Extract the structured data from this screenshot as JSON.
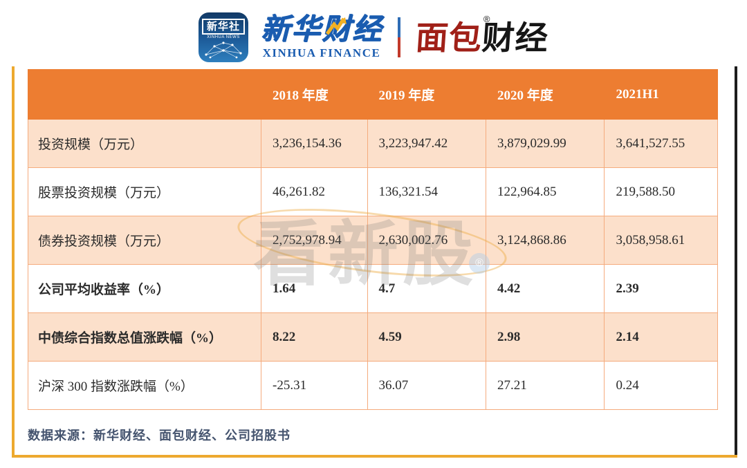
{
  "header": {
    "xinhua_news_icon": {
      "title": "新华社",
      "subtitle": "XINHUA NEWS"
    },
    "xinhua_finance": {
      "cn": "新华财经",
      "en": "XINHUA FINANCE"
    },
    "mianbao_finance": {
      "cn_red": "面包",
      "cn_black": "财经",
      "registered_mark": "®"
    }
  },
  "watermark": {
    "text": "看新股",
    "registered_mark": "®"
  },
  "table": {
    "header_row": [
      "",
      "2018 年度",
      "2019 年度",
      "2020 年度",
      "2021H1"
    ],
    "rows": [
      {
        "label": "投资规模（万元）",
        "values": [
          "3,236,154.36",
          "3,223,947.42",
          "3,879,029.99",
          "3,641,527.55"
        ],
        "bold": false
      },
      {
        "label": "股票投资规模（万元）",
        "values": [
          "46,261.82",
          "136,321.54",
          "122,964.85",
          "219,588.50"
        ],
        "bold": false
      },
      {
        "label": "债券投资规模（万元）",
        "values": [
          "2,752,978.94",
          "2,630,002.76",
          "3,124,868.86",
          "3,058,958.61"
        ],
        "bold": false
      },
      {
        "label": "公司平均收益率（%）",
        "values": [
          "1.64",
          "4.7",
          "4.42",
          "2.39"
        ],
        "bold": true
      },
      {
        "label": "中债综合指数总值涨跌幅（%）",
        "values": [
          "8.22",
          "4.59",
          "2.98",
          "2.14"
        ],
        "bold": true
      },
      {
        "label": "沪深 300 指数涨跌幅（%）",
        "values": [
          "-25.31",
          "36.07",
          "27.21",
          "0.24"
        ],
        "bold": false
      }
    ]
  },
  "footer": {
    "source_note": "数据来源：新华财经、面包财经、公司招股书"
  },
  "colors": {
    "header_bg": "#ED7D31",
    "row_peach": "#FCE0CB",
    "cell_border": "#F5AB7D",
    "frame_gold": "#EDA92F",
    "frame_black": "#1C1C1C",
    "source_text": "#44536E",
    "xinhua_blue": "#1A5CB0",
    "mianbao_red": "#A02018"
  }
}
